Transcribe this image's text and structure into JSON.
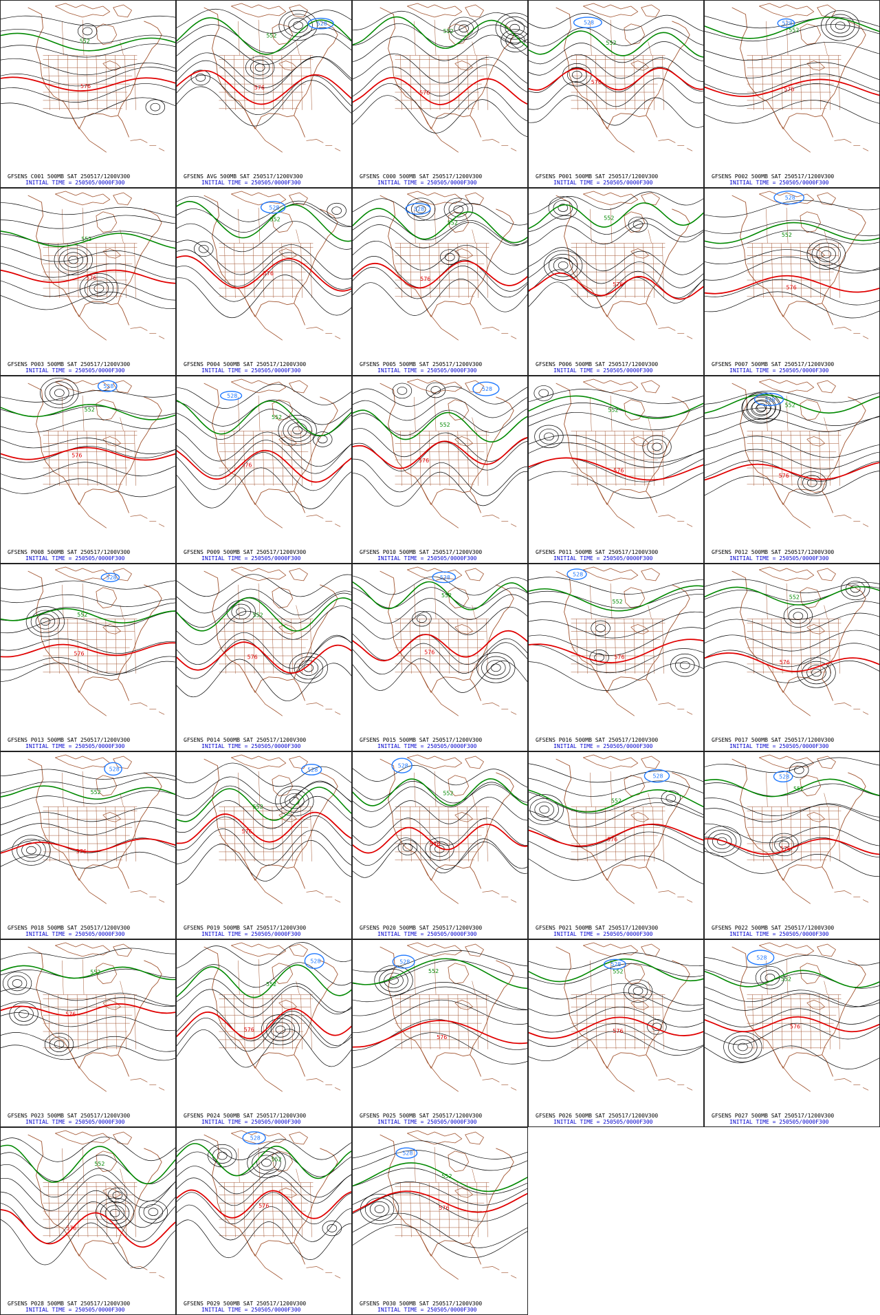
{
  "colors": {
    "coast": "#a0522d",
    "black_contour": "#000000",
    "green_contour": "#008800",
    "red_contour": "#e00000",
    "blue_contour": "#1e78ff",
    "title_black": "#000000",
    "title_blue": "#0000cc"
  },
  "contour_labels": {
    "green": "552",
    "red": "576",
    "blue": "528"
  },
  "panels": [
    {
      "line1": "GFSENS C001 500MB SAT 250517/1200V300",
      "line2": "INITIAL TIME = 250505/0000F300"
    },
    {
      "line1": "GFSENS AVG 500MB SAT 250517/1200V300",
      "line2": "INITIAL TIME = 250505/0000F300"
    },
    {
      "line1": "GFSENS C000 500MB SAT 250517/1200V300",
      "line2": "INITIAL TIME = 250505/0000F300"
    },
    {
      "line1": "GFSENS P001 500MB SAT 250517/1200V300",
      "line2": "INITIAL TIME = 250505/0000F300"
    },
    {
      "line1": "GFSENS P002 500MB SAT 250517/1200V300",
      "line2": "INITIAL TIME = 250505/0000F300"
    },
    {
      "line1": "GFSENS P003 500MB SAT 250517/1200V300",
      "line2": "INITIAL TIME = 250505/0000F300"
    },
    {
      "line1": "GFSENS P004 500MB SAT 250517/1200V300",
      "line2": "INITIAL TIME = 250505/0000F300"
    },
    {
      "line1": "GFSENS P005 500MB SAT 250517/1200V300",
      "line2": "INITIAL TIME = 250505/0000F300"
    },
    {
      "line1": "GFSENS P006 500MB SAT 250517/1200V300",
      "line2": "INITIAL TIME = 250505/0000F300"
    },
    {
      "line1": "GFSENS P007 500MB SAT 250517/1200V300",
      "line2": "INITIAL TIME = 250505/0000F300"
    },
    {
      "line1": "GFSENS P008 500MB SAT 250517/1200V300",
      "line2": "INITIAL TIME = 250505/0000F300"
    },
    {
      "line1": "GFSENS P009 500MB SAT 250517/1200V300",
      "line2": "INITIAL TIME = 250505/0000F300"
    },
    {
      "line1": "GFSENS P010 500MB SAT 250517/1200V300",
      "line2": "INITIAL TIME = 250505/0000F300"
    },
    {
      "line1": "GFSENS P011 500MB SAT 250517/1200V300",
      "line2": "INITIAL TIME = 250505/0000F300"
    },
    {
      "line1": "GFSENS P012 500MB SAT 250517/1200V300",
      "line2": "INITIAL TIME = 250505/0000F300"
    },
    {
      "line1": "GFSENS P013 500MB SAT 250517/1200V300",
      "line2": "INITIAL TIME = 250505/0000F300"
    },
    {
      "line1": "GFSENS P014 500MB SAT 250517/1200V300",
      "line2": "INITIAL TIME = 250505/0000F300"
    },
    {
      "line1": "GFSENS P015 500MB SAT 250517/1200V300",
      "line2": "INITIAL TIME = 250505/0000F300"
    },
    {
      "line1": "GFSENS P016 500MB SAT 250517/1200V300",
      "line2": "INITIAL TIME = 250505/0000F300"
    },
    {
      "line1": "GFSENS P017 500MB SAT 250517/1200V300",
      "line2": "INITIAL TIME = 250505/0000F300"
    },
    {
      "line1": "GFSENS P018 500MB SAT 250517/1200V300",
      "line2": "INITIAL TIME = 250505/0000F300"
    },
    {
      "line1": "GFSENS P019 500MB SAT 250517/1200V300",
      "line2": "INITIAL TIME = 250505/0000F300"
    },
    {
      "line1": "GFSENS P020 500MB SAT 250517/1200V300",
      "line2": "INITIAL TIME = 250505/0000F300"
    },
    {
      "line1": "GFSENS P021 500MB SAT 250517/1200V300",
      "line2": "INITIAL TIME = 250505/0000F300"
    },
    {
      "line1": "GFSENS P022 500MB SAT 250517/1200V300",
      "line2": "INITIAL TIME = 250505/0000F300"
    },
    {
      "line1": "GFSENS P023 500MB SAT 250517/1200V300",
      "line2": "INITIAL TIME = 250505/0000F300"
    },
    {
      "line1": "GFSENS P024 500MB SAT 250517/1200V300",
      "line2": "INITIAL TIME = 250505/0000F300"
    },
    {
      "line1": "GFSENS P025 500MB SAT 250517/1200V300",
      "line2": "INITIAL TIME = 250505/0000F300"
    },
    {
      "line1": "GFSENS P026 500MB SAT 250517/1200V300",
      "line2": "INITIAL TIME = 250505/0000F300"
    },
    {
      "line1": "GFSENS P027 500MB SAT 250517/1200V300",
      "line2": "INITIAL TIME = 250505/0000F300"
    },
    {
      "line1": "GFSENS P028 500MB SAT 250517/1200V300",
      "line2": "INITIAL TIME = 250505/0000F300"
    },
    {
      "line1": "GFSENS P029 500MB SAT 250517/1200V300",
      "line2": "INITIAL TIME = 250505/0000F300"
    },
    {
      "line1": "GFSENS P030 500MB SAT 250517/1200V300",
      "line2": "INITIAL TIME = 250505/0000F300"
    }
  ]
}
